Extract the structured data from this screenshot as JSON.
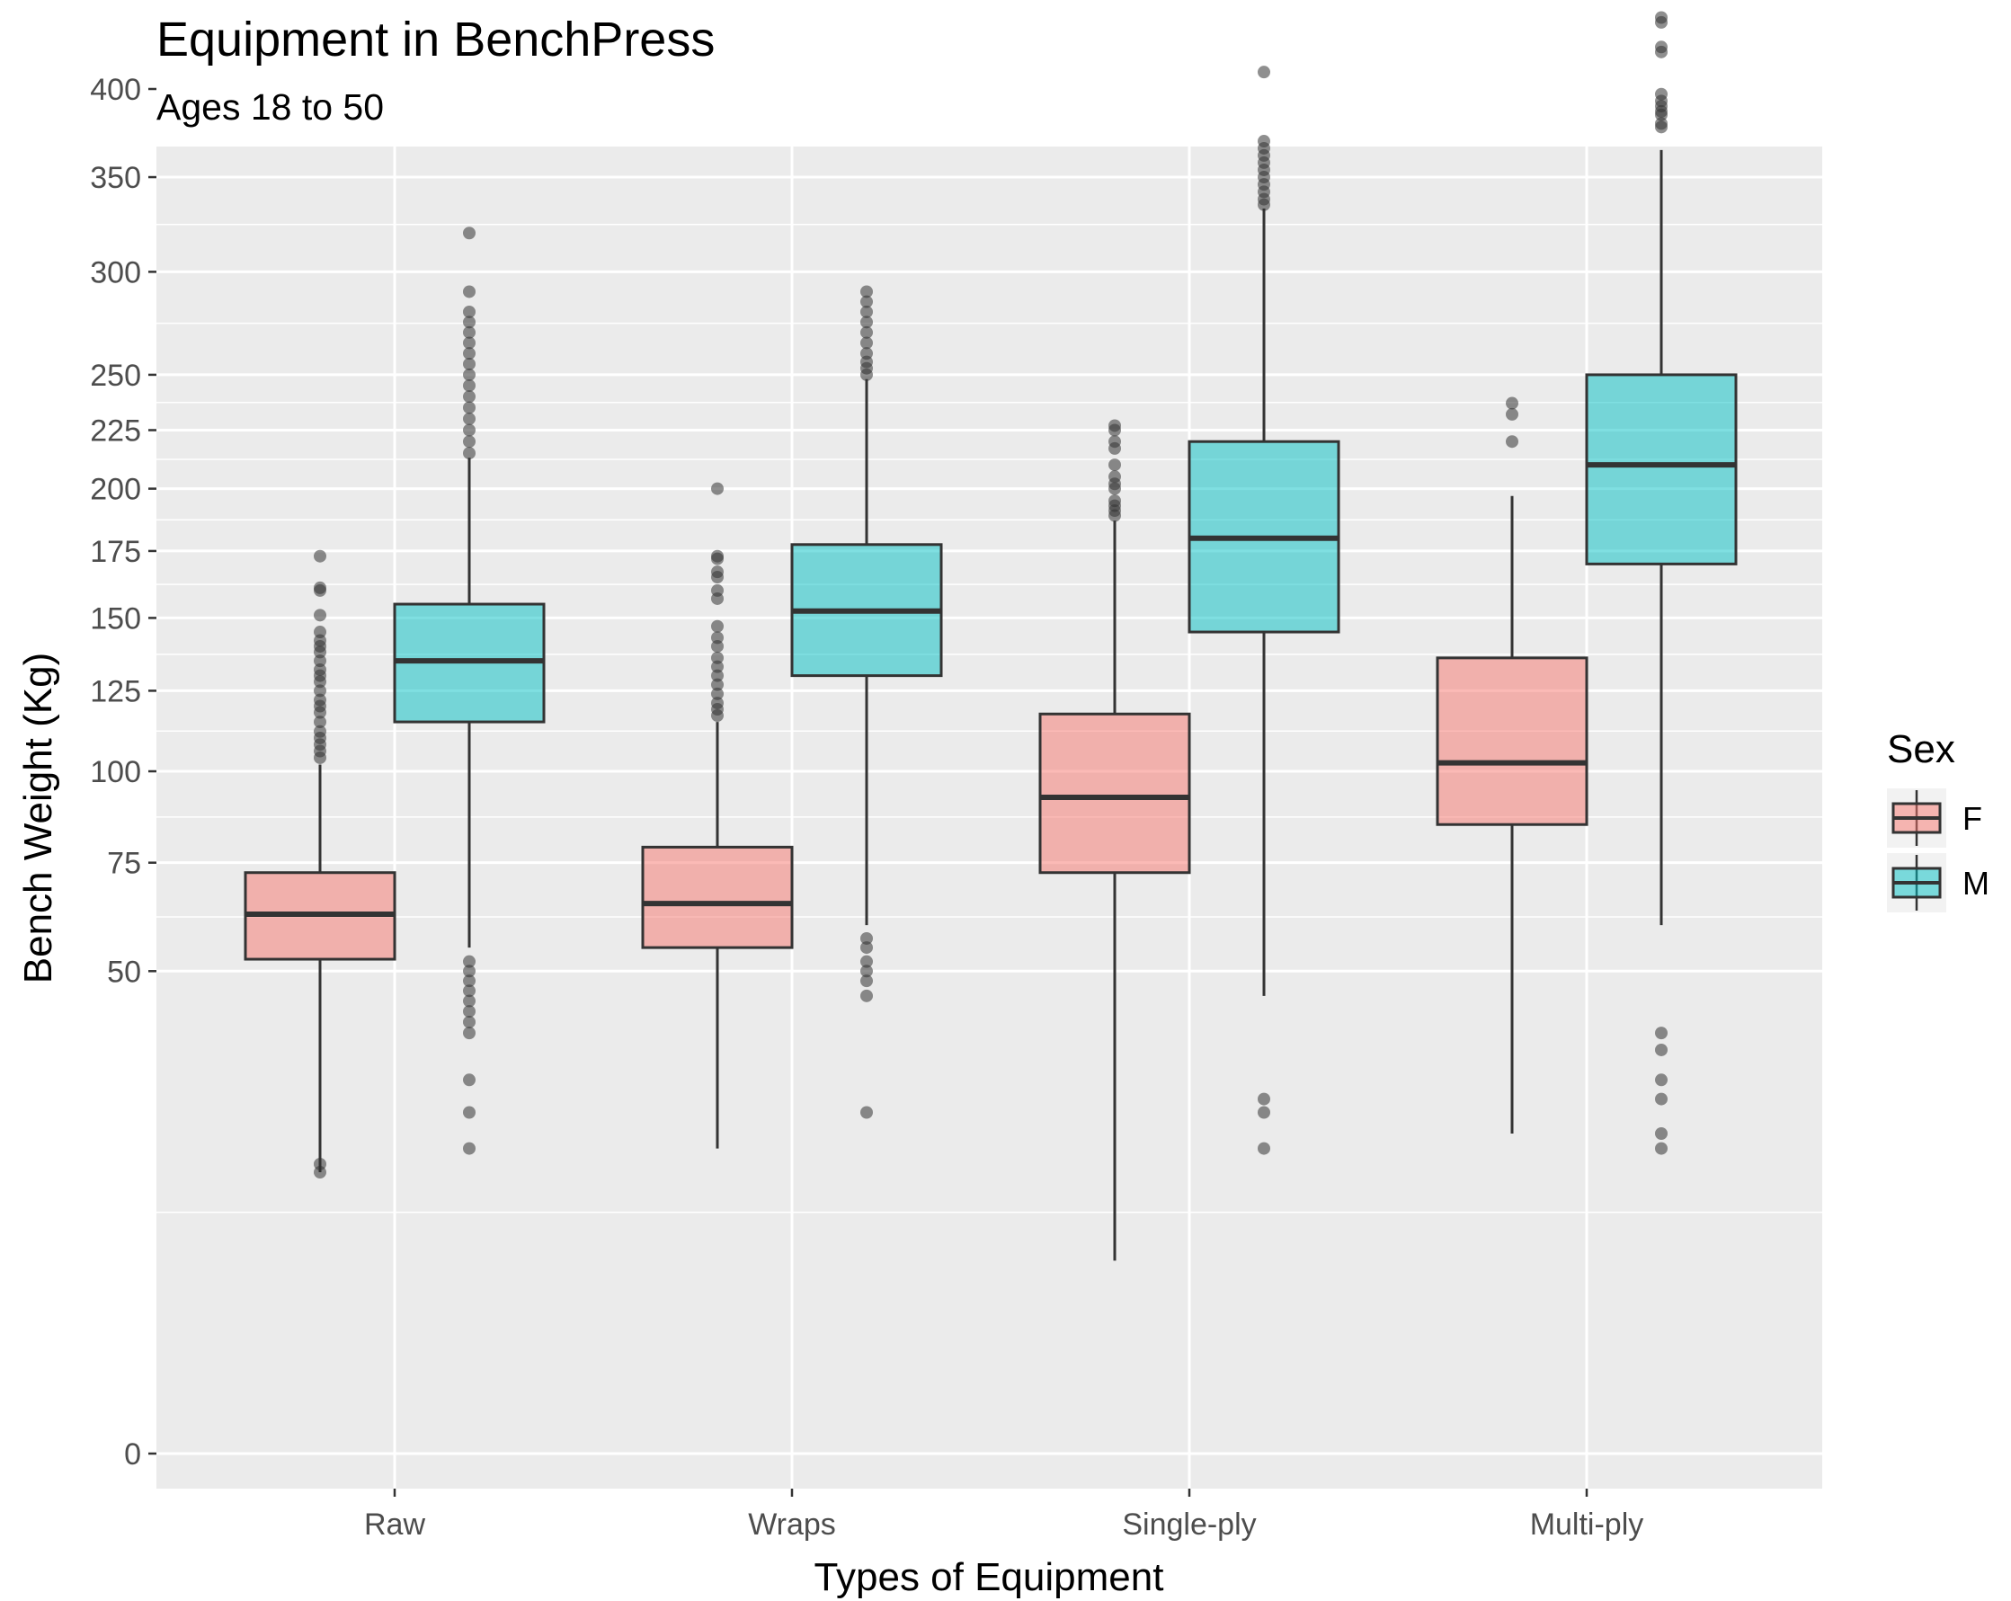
{
  "chart_data": {
    "type": "boxplot",
    "title": "Equipment in BenchPress",
    "subtitle": "Ages 18 to 50",
    "xlabel": "Types of Equipment",
    "ylabel": "Bench Weight (Kg)",
    "y_scale": "sqrt",
    "ylim": [
      0,
      450
    ],
    "y_ticks": [
      0,
      50,
      75,
      100,
      125,
      150,
      175,
      200,
      225,
      250,
      300,
      350,
      400
    ],
    "categories": [
      "Raw",
      "Wraps",
      "Single-ply",
      "Multi-ply"
    ],
    "legend": {
      "title": "Sex",
      "placement": "right"
    },
    "grid": true,
    "background": "#ebebeb",
    "series": [
      {
        "name": "F",
        "color": "#f8766d",
        "boxes": [
          {
            "whisker_low": 17,
            "q1": 52.5,
            "median": 62.5,
            "q3": 72.5,
            "whisker_high": 102,
            "outliers": [
              17,
              18,
              104,
              106,
              108,
              110,
              112,
              115,
              118,
              120,
              122,
              125,
              128,
              130,
              132,
              135,
              138,
              140,
              142,
              145,
              151,
              160,
              161,
              173
            ]
          },
          {
            "whisker_low": 20,
            "q1": 55,
            "median": 65,
            "q3": 79,
            "whisker_high": 115,
            "outliers": [
              117,
              119,
              121,
              124,
              127,
              130,
              133,
              136,
              140,
              143,
              147,
              157,
              160,
              165,
              167,
              172,
              173,
              200
            ]
          },
          {
            "whisker_low": 8,
            "q1": 72.5,
            "median": 92.5,
            "q3": 117.5,
            "whisker_high": 187,
            "outliers": [
              189,
              191,
              193,
              195,
              200,
              202,
              205,
              210,
              217,
              220,
              225,
              227
            ]
          },
          {
            "whisker_low": 22,
            "q1": 85,
            "median": 102.5,
            "q3": 136,
            "whisker_high": 197,
            "outliers": [
              220,
              232,
              237
            ]
          }
        ]
      },
      {
        "name": "M",
        "color": "#00bfc4",
        "boxes": [
          {
            "whisker_low": 55,
            "q1": 115,
            "median": 135,
            "q3": 155,
            "whisker_high": 213,
            "outliers": [
              20,
              25,
              30,
              38,
              40,
              42,
              44,
              46,
              48,
              50,
              52,
              215,
              220,
              225,
              230,
              235,
              240,
              245,
              250,
              255,
              260,
              265,
              270,
              275,
              280,
              290,
              320
            ]
          },
          {
            "whisker_low": 60,
            "q1": 130,
            "median": 152.5,
            "q3": 177.5,
            "whisker_high": 248,
            "outliers": [
              25,
              45,
              48,
              50,
              52,
              55,
              57,
              250,
              253,
              256,
              260,
              265,
              270,
              275,
              280,
              285,
              290
            ]
          },
          {
            "whisker_low": 45,
            "q1": 145,
            "median": 180,
            "q3": 220,
            "whisker_high": 333,
            "outliers": [
              20,
              25,
              27,
              335,
              338,
              342,
              346,
              350,
              354,
              358,
              362,
              366,
              370,
              410
            ]
          },
          {
            "whisker_low": 60,
            "q1": 170,
            "median": 210,
            "q3": 250,
            "whisker_high": 365,
            "outliers": [
              20,
              22,
              27,
              30,
              35,
              38,
              378,
              380,
              385,
              387,
              390,
              393,
              397,
              422,
              425,
              440,
              443
            ]
          }
        ]
      }
    ]
  }
}
